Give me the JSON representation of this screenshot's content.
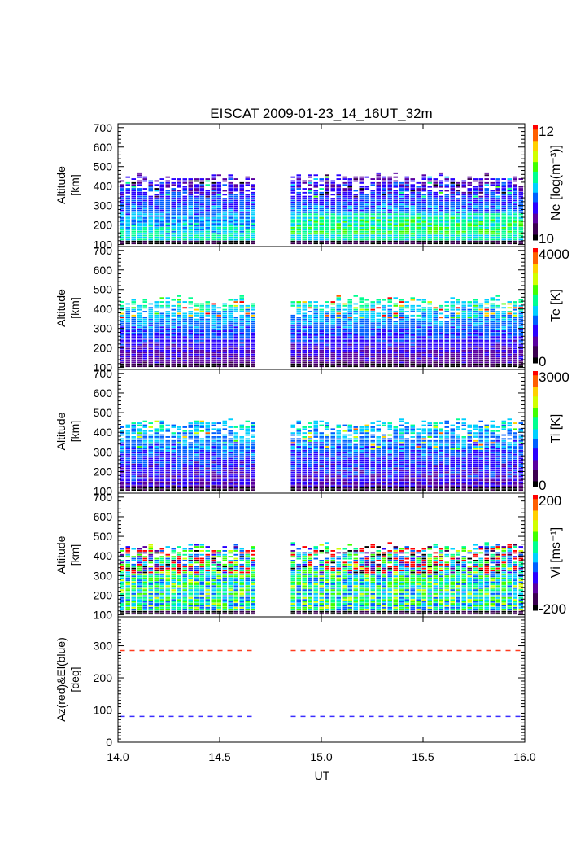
{
  "chart_data": {
    "type": "heatmap",
    "title": "EISCAT 2009-01-23_14_16UT_32m",
    "xlabel": "UT",
    "xlim": [
      14.0,
      16.0
    ],
    "xticks": [
      "14.0",
      "14.5",
      "15.0",
      "15.5",
      "16.0"
    ],
    "xtick_values": [
      14.0,
      14.5,
      15.0,
      15.5,
      16.0
    ],
    "data_blocks_ut": [
      [
        14.01,
        14.68
      ],
      [
        14.85,
        16.0
      ]
    ],
    "column_step_ut": 0.028,
    "panels": [
      {
        "id": "ne",
        "ylabel": [
          "Altitude",
          "[km]"
        ],
        "ylim": [
          90,
          720
        ],
        "yticks": [
          100,
          200,
          300,
          400,
          500,
          600,
          700
        ],
        "colorbar_label": "Ne [log(m⁻³)]",
        "colorbar_range": [
          10,
          12
        ],
        "colorbar_ticks": [
          "10",
          "12"
        ],
        "data_altitude_range_km": [
          100,
          460
        ],
        "description": "Electron density: mostly purple/blue, cyan band near 150-250 km in the second block, sparse values above 350 km"
      },
      {
        "id": "te",
        "ylabel": [
          "Altitude",
          "[km]"
        ],
        "ylim": [
          90,
          720
        ],
        "yticks": [
          100,
          200,
          300,
          400,
          500,
          600,
          700
        ],
        "colorbar_label": "Te [K]",
        "colorbar_range": [
          0,
          4000
        ],
        "colorbar_ticks": [
          "0",
          "4000"
        ],
        "data_altitude_range_km": [
          100,
          460
        ],
        "description": "Electron temperature: purple at low altitude, blue to cyan above 200 km, scattered red/yellow values above 350 km"
      },
      {
        "id": "ti",
        "ylabel": [
          "Altitude",
          "[km]"
        ],
        "ylim": [
          90,
          720
        ],
        "yticks": [
          100,
          200,
          300,
          400,
          500,
          600,
          700
        ],
        "colorbar_label": "Ti [K]",
        "colorbar_range": [
          0,
          3000
        ],
        "colorbar_ticks": [
          "0",
          "3000"
        ],
        "data_altitude_range_km": [
          100,
          460
        ],
        "description": "Ion temperature: mostly purple to blue, occasional cyan/green/orange above 300 km"
      },
      {
        "id": "vi",
        "ylabel": [
          "Altitude",
          "[km]"
        ],
        "ylim": [
          90,
          720
        ],
        "yticks": [
          100,
          200,
          300,
          400,
          500,
          600,
          700
        ],
        "colorbar_label": "Vi [ms⁻¹]",
        "colorbar_range": [
          -200,
          200
        ],
        "colorbar_ticks": [
          "-200",
          "200"
        ],
        "data_altitude_range_km": [
          100,
          460
        ],
        "description": "Ion velocity: near zero (green/cyan) at low altitudes, noisy red/black/blue above 300 km"
      },
      {
        "id": "azel",
        "type": "line",
        "ylabel": [
          "Az(red)&El(blue)",
          "[deg]"
        ],
        "ylim": [
          0,
          390
        ],
        "yticks": [
          0,
          100,
          200,
          300
        ],
        "series": [
          {
            "name": "Az",
            "color": "#ff3b1f",
            "value": 285
          },
          {
            "name": "El",
            "color": "#3a2dff",
            "value": 80
          }
        ]
      }
    ],
    "colormap": [
      "#000000",
      "#3c0050",
      "#5a00a0",
      "#2a00ff",
      "#0060ff",
      "#00d0ff",
      "#00ff90",
      "#40ff00",
      "#d0ff00",
      "#ffd000",
      "#ff6000",
      "#ff0000"
    ]
  }
}
